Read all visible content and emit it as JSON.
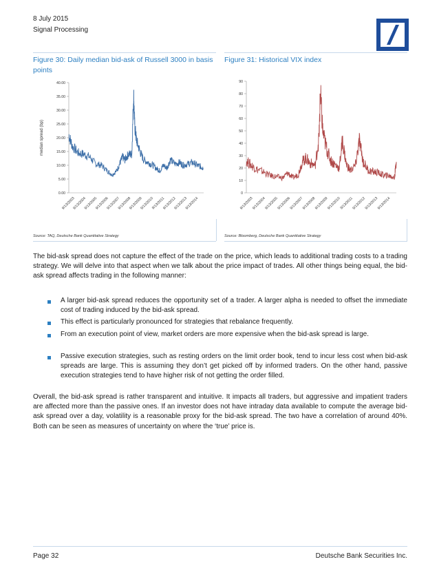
{
  "header": {
    "date": "8 July 2015",
    "section": "Signal Processing"
  },
  "logo": {
    "name": "deutsche-bank-logo",
    "color": "#1e4d9b"
  },
  "figures": [
    {
      "title": "Figure 30: Daily median bid-ask of Russell 3000 in basis points",
      "source": "Source: TAQ, Deutsche Bank Quantitative Strategy"
    },
    {
      "title": "Figure 31: Historical VIX index",
      "source": "Source: Bloomberg, Deutsche Bank Quantitative Strategy"
    }
  ],
  "chart_data": [
    {
      "type": "line",
      "title": "",
      "ylabel": "median spread (bp)",
      "xlabel": "",
      "ylim": [
        0,
        40
      ],
      "y_ticks": [
        "0.00",
        "5.00",
        "10.00",
        "15.00",
        "20.00",
        "25.00",
        "30.00",
        "35.00",
        "40.00"
      ],
      "x_ticks": [
        "9/13/2003",
        "9/13/2004",
        "9/13/2005",
        "9/13/2006",
        "9/13/2007",
        "9/13/2008",
        "9/13/2009",
        "9/13/2010",
        "9/13/2011",
        "9/13/2012",
        "9/13/2013",
        "9/13/2014"
      ],
      "color": "#3d6fa8",
      "series": [
        {
          "x": [
            2003.2,
            2003.5,
            2004.0,
            2004.5,
            2005.0,
            2005.5,
            2006.0,
            2006.5,
            2006.9,
            2007.3,
            2007.6,
            2007.8,
            2008.0,
            2008.3,
            2008.6,
            2008.75,
            2008.85,
            2009.0,
            2009.3,
            2009.6,
            2010.0,
            2010.4,
            2010.8,
            2011.0,
            2011.3,
            2011.6,
            2011.9,
            2012.3,
            2012.7,
            2013.0,
            2013.4,
            2013.8,
            2014.2,
            2014.5,
            2014.7
          ],
          "y": [
            21,
            17,
            14.5,
            14,
            13,
            10.5,
            10,
            8,
            6.5,
            8,
            11,
            13,
            12,
            14,
            14,
            36,
            24,
            19,
            15,
            12,
            11,
            10,
            8.5,
            8,
            10,
            9,
            12,
            10.5,
            11,
            10,
            10.5,
            11,
            10,
            9.5,
            9
          ]
        }
      ]
    },
    {
      "type": "line",
      "title": "",
      "xlabel": "",
      "ylabel": "",
      "ylim": [
        0,
        90
      ],
      "y_ticks": [
        "0",
        "10",
        "20",
        "30",
        "40",
        "50",
        "60",
        "70",
        "80",
        "90"
      ],
      "x_ticks": [
        "9/13/2003",
        "9/13/2004",
        "9/13/2005",
        "9/13/2006",
        "9/13/2007",
        "9/13/2008",
        "9/13/2009",
        "9/13/2010",
        "9/13/2011",
        "9/13/2012",
        "9/13/2013",
        "9/13/2014"
      ],
      "color": "#b04a4a",
      "series": [
        {
          "x": [
            2003.2,
            2003.6,
            2004.0,
            2004.5,
            2005.0,
            2005.5,
            2006.0,
            2006.4,
            2006.8,
            2007.2,
            2007.5,
            2007.8,
            2008.1,
            2008.5,
            2008.8,
            2008.9,
            2009.1,
            2009.4,
            2009.7,
            2010.0,
            2010.35,
            2010.6,
            2010.9,
            2011.2,
            2011.6,
            2011.9,
            2012.2,
            2012.6,
            2013.0,
            2013.4,
            2013.8,
            2014.1,
            2014.4,
            2014.6,
            2014.75
          ],
          "y": [
            26,
            22,
            19,
            17,
            14,
            13,
            12,
            16,
            12,
            15,
            25,
            28,
            24,
            22,
            45,
            80,
            48,
            35,
            26,
            23,
            20,
            42,
            23,
            18,
            22,
            42,
            25,
            18,
            17,
            16,
            14,
            14,
            13,
            12,
            25
          ]
        }
      ]
    }
  ],
  "body": {
    "intro": "The bid-ask spread does not capture the effect of the trade on the price, which leads to additional trading costs to a trading strategy. We will delve into that aspect when we talk about the price impact of trades. All other things being equal, the bid-ask spread affects trading in the following manner:",
    "bullets": [
      "A larger bid-ask spread reduces the opportunity set of a trader. A larger alpha is needed to offset the immediate cost of trading induced by the bid-ask spread.",
      "This effect is particularly pronounced for strategies that rebalance frequently.",
      "From an execution point of view, market orders are more expensive when the bid-ask spread is large.",
      "Passive execution strategies, such as resting orders on the limit order book, tend to incur less cost when bid-ask spreads are large. This is assuming they don’t get picked off by informed traders. On the other hand, passive execution strategies tend to have higher risk of not getting the order filled."
    ],
    "conclusion": "Overall, the bid-ask spread is rather transparent and intuitive. It impacts all traders, but aggressive and impatient traders are affected more than the passive ones. If an investor does not have intraday data available to compute the average bid-ask spread over a day, volatility is a reasonable proxy for the bid-ask spread. The two have a correlation of around 40%. Both can be seen as measures of uncertainty on where the ‘true’ price is."
  },
  "footer": {
    "page": "Page 32",
    "company": "Deutsche Bank Securities Inc."
  }
}
